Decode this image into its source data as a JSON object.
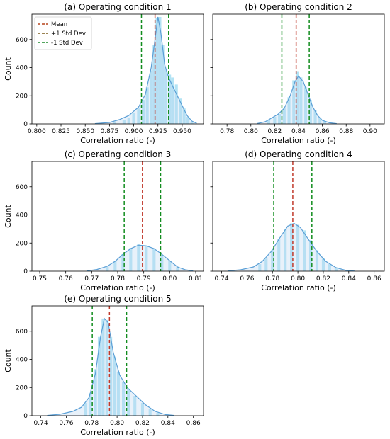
{
  "legend": {
    "entries": [
      {
        "label": "Mean",
        "color": "#b5431c"
      },
      {
        "label": "+1 Std Dev",
        "color": "#7a5a1a"
      },
      {
        "label": "-1 Std Dev",
        "color": "#1c8a2a"
      }
    ]
  },
  "colors": {
    "hist_fill": "#a6def2",
    "kde_line": "#5a9fd6",
    "kde_fill": "#bcd6f0",
    "mean_line": "#c0392b",
    "std_line": "#118c1e"
  },
  "chart_data": [
    {
      "type": "histogram",
      "title": "(a) Operating condition 1",
      "xlabel": "Correlation ratio (-)",
      "ylabel": "Count",
      "xlim": [
        0.795,
        0.972
      ],
      "ylim": [
        0,
        780
      ],
      "xticks": [
        "0.800",
        "0.825",
        "0.850",
        "0.875",
        "0.900",
        "0.925",
        "0.950"
      ],
      "yticks": [
        "0",
        "200",
        "400",
        "600"
      ],
      "mean": 0.922,
      "std_lines": [
        0.908,
        0.936
      ],
      "kde": [
        [
          0.86,
          2
        ],
        [
          0.875,
          10
        ],
        [
          0.885,
          30
        ],
        [
          0.895,
          60
        ],
        [
          0.905,
          120
        ],
        [
          0.912,
          210
        ],
        [
          0.918,
          400
        ],
        [
          0.922,
          600
        ],
        [
          0.925,
          760
        ],
        [
          0.928,
          650
        ],
        [
          0.932,
          420
        ],
        [
          0.936,
          330
        ],
        [
          0.94,
          270
        ],
        [
          0.945,
          200
        ],
        [
          0.95,
          130
        ],
        [
          0.955,
          60
        ],
        [
          0.96,
          20
        ],
        [
          0.965,
          4
        ]
      ],
      "bins": [
        [
          0.88,
          10
        ],
        [
          0.89,
          25
        ],
        [
          0.895,
          45
        ],
        [
          0.9,
          80
        ],
        [
          0.905,
          110
        ],
        [
          0.91,
          170
        ],
        [
          0.914,
          260
        ],
        [
          0.918,
          380
        ],
        [
          0.921,
          560
        ],
        [
          0.924,
          755
        ],
        [
          0.927,
          760
        ],
        [
          0.93,
          560
        ],
        [
          0.933,
          390
        ],
        [
          0.937,
          350
        ],
        [
          0.94,
          330
        ],
        [
          0.944,
          280
        ],
        [
          0.948,
          180
        ],
        [
          0.952,
          110
        ],
        [
          0.956,
          50
        ],
        [
          0.96,
          15
        ]
      ]
    },
    {
      "type": "histogram",
      "title": "(b) Operating condition 2",
      "xlabel": "Correlation ratio (-)",
      "ylabel": "",
      "xlim": [
        0.768,
        0.912
      ],
      "ylim": [
        0,
        780
      ],
      "xticks": [
        "0.78",
        "0.80",
        "0.82",
        "0.84",
        "0.86",
        "0.88",
        "0.90"
      ],
      "yticks": [],
      "mean": 0.838,
      "std_lines": [
        0.826,
        0.849
      ],
      "kde": [
        [
          0.805,
          2
        ],
        [
          0.812,
          15
        ],
        [
          0.818,
          45
        ],
        [
          0.823,
          70
        ],
        [
          0.828,
          110
        ],
        [
          0.833,
          200
        ],
        [
          0.837,
          300
        ],
        [
          0.84,
          340
        ],
        [
          0.844,
          300
        ],
        [
          0.848,
          210
        ],
        [
          0.852,
          120
        ],
        [
          0.856,
          60
        ],
        [
          0.86,
          25
        ],
        [
          0.866,
          8
        ],
        [
          0.872,
          2
        ]
      ],
      "bins": [
        [
          0.815,
          25
        ],
        [
          0.82,
          50
        ],
        [
          0.824,
          70
        ],
        [
          0.828,
          110
        ],
        [
          0.832,
          190
        ],
        [
          0.836,
          310
        ],
        [
          0.839,
          375
        ],
        [
          0.842,
          330
        ],
        [
          0.846,
          260
        ],
        [
          0.85,
          170
        ],
        [
          0.854,
          95
        ],
        [
          0.858,
          45
        ],
        [
          0.862,
          18
        ]
      ]
    },
    {
      "type": "histogram",
      "title": "(c) Operating condition 3",
      "xlabel": "Correlation ratio (-)",
      "ylabel": "Count",
      "xlim": [
        0.747,
        0.813
      ],
      "ylim": [
        0,
        780
      ],
      "xticks": [
        "0.75",
        "0.76",
        "0.77",
        "0.78",
        "0.79",
        "0.80",
        "0.81"
      ],
      "yticks": [
        "0",
        "200",
        "400",
        "600"
      ],
      "mean": 0.7895,
      "std_lines": [
        0.7825,
        0.7965
      ],
      "kde": [
        [
          0.768,
          2
        ],
        [
          0.772,
          12
        ],
        [
          0.776,
          35
        ],
        [
          0.779,
          70
        ],
        [
          0.782,
          120
        ],
        [
          0.785,
          160
        ],
        [
          0.788,
          185
        ],
        [
          0.791,
          180
        ],
        [
          0.794,
          160
        ],
        [
          0.797,
          120
        ],
        [
          0.8,
          75
        ],
        [
          0.803,
          30
        ],
        [
          0.806,
          10
        ],
        [
          0.809,
          2
        ]
      ],
      "bins": [
        [
          0.776,
          30
        ],
        [
          0.779,
          70
        ],
        [
          0.782,
          120
        ],
        [
          0.785,
          165
        ],
        [
          0.788,
          190
        ],
        [
          0.791,
          180
        ],
        [
          0.794,
          160
        ],
        [
          0.797,
          115
        ],
        [
          0.8,
          70
        ],
        [
          0.803,
          28
        ]
      ]
    },
    {
      "type": "histogram",
      "title": "(d) Operating condition 4",
      "xlabel": "Correlation ratio (-)",
      "ylabel": "",
      "xlim": [
        0.733,
        0.868
      ],
      "ylim": [
        0,
        780
      ],
      "xticks": [
        "0.74",
        "0.76",
        "0.78",
        "0.80",
        "0.82",
        "0.84",
        "0.86"
      ],
      "yticks": [],
      "mean": 0.796,
      "std_lines": [
        0.781,
        0.811
      ],
      "kde": [
        [
          0.745,
          2
        ],
        [
          0.755,
          10
        ],
        [
          0.765,
          30
        ],
        [
          0.772,
          70
        ],
        [
          0.779,
          140
        ],
        [
          0.786,
          240
        ],
        [
          0.792,
          320
        ],
        [
          0.797,
          340
        ],
        [
          0.802,
          310
        ],
        [
          0.808,
          230
        ],
        [
          0.815,
          140
        ],
        [
          0.822,
          70
        ],
        [
          0.83,
          25
        ],
        [
          0.838,
          5
        ],
        [
          0.845,
          1
        ]
      ],
      "bins": [
        [
          0.77,
          50
        ],
        [
          0.775,
          90
        ],
        [
          0.78,
          150
        ],
        [
          0.785,
          230
        ],
        [
          0.79,
          300
        ],
        [
          0.795,
          340
        ],
        [
          0.8,
          330
        ],
        [
          0.805,
          290
        ],
        [
          0.81,
          220
        ],
        [
          0.815,
          150
        ],
        [
          0.82,
          90
        ],
        [
          0.825,
          50
        ],
        [
          0.83,
          22
        ]
      ]
    },
    {
      "type": "histogram",
      "title": "(e) Operating condition 5",
      "xlabel": "Correlation ratio (-)",
      "ylabel": "Count",
      "xlim": [
        0.733,
        0.868
      ],
      "ylim": [
        0,
        780
      ],
      "xticks": [
        "0.74",
        "0.76",
        "0.78",
        "0.80",
        "0.82",
        "0.84",
        "0.86"
      ],
      "yticks": [
        "0",
        "200",
        "400",
        "600"
      ],
      "mean": 0.794,
      "std_lines": [
        0.7805,
        0.8075
      ],
      "kde": [
        [
          0.745,
          2
        ],
        [
          0.755,
          10
        ],
        [
          0.765,
          30
        ],
        [
          0.772,
          60
        ],
        [
          0.778,
          130
        ],
        [
          0.783,
          300
        ],
        [
          0.787,
          560
        ],
        [
          0.79,
          690
        ],
        [
          0.793,
          660
        ],
        [
          0.797,
          450
        ],
        [
          0.802,
          290
        ],
        [
          0.808,
          200
        ],
        [
          0.815,
          140
        ],
        [
          0.822,
          80
        ],
        [
          0.83,
          30
        ],
        [
          0.838,
          8
        ],
        [
          0.845,
          2
        ]
      ],
      "bins": [
        [
          0.775,
          90
        ],
        [
          0.779,
          160
        ],
        [
          0.783,
          330
        ],
        [
          0.786,
          560
        ],
        [
          0.789,
          690
        ],
        [
          0.792,
          680
        ],
        [
          0.795,
          560
        ],
        [
          0.798,
          420
        ],
        [
          0.801,
          310
        ],
        [
          0.805,
          240
        ],
        [
          0.809,
          190
        ],
        [
          0.814,
          140
        ],
        [
          0.82,
          90
        ],
        [
          0.826,
          50
        ],
        [
          0.832,
          20
        ]
      ]
    }
  ]
}
